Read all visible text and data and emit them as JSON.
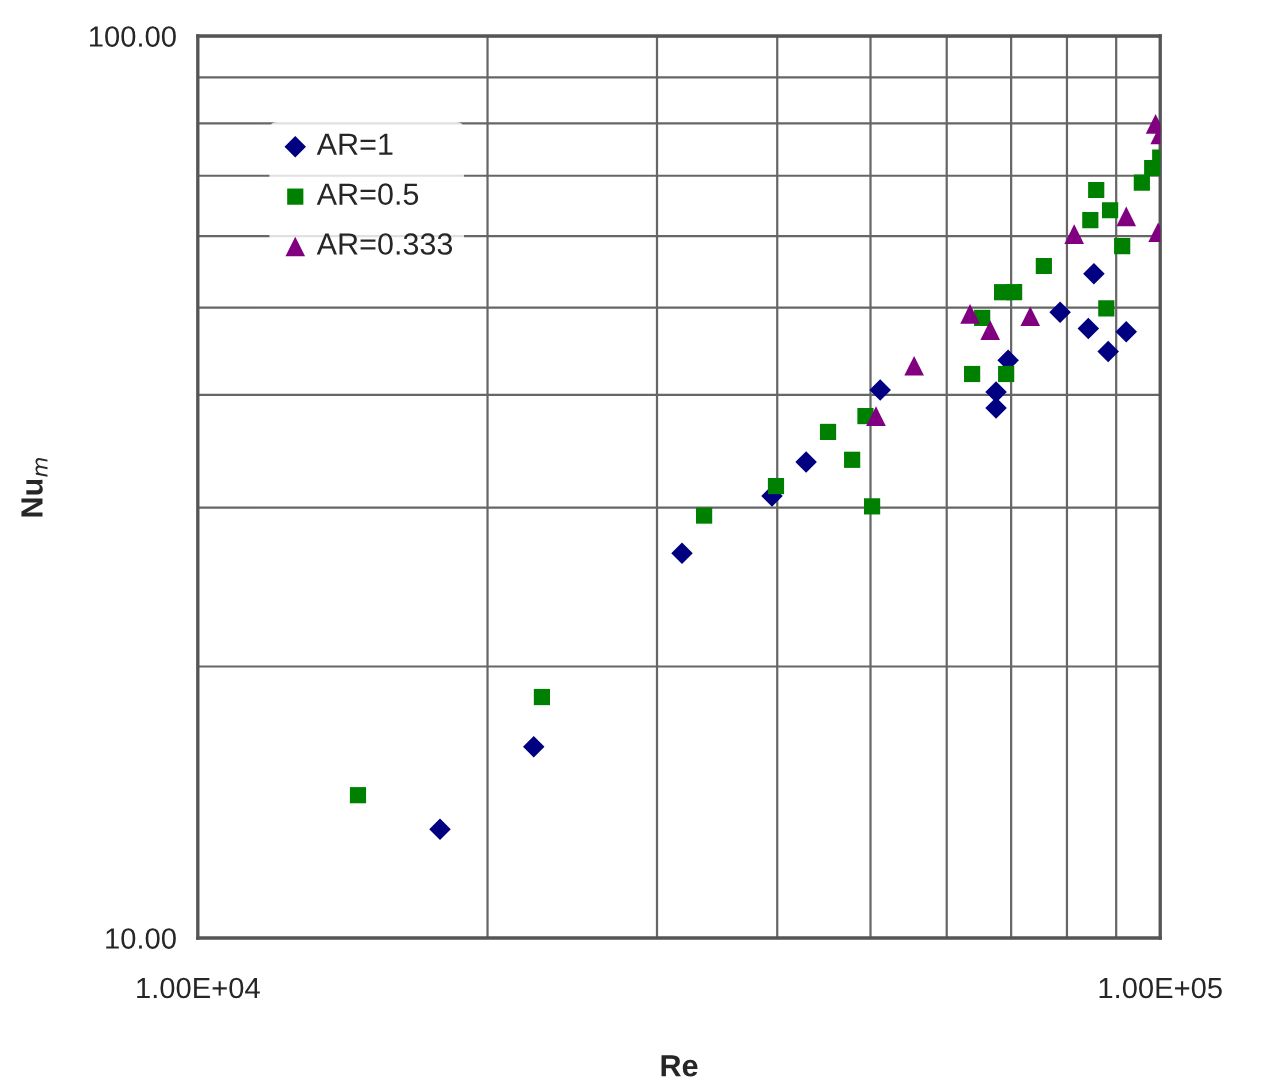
{
  "chart_data": {
    "type": "scatter",
    "xlabel": "Re",
    "ylabel": "Nu$_{m}$",
    "log": "xy",
    "grid": true,
    "legend": "top left",
    "xlim": [
      10000,
      100000
    ],
    "ylim": [
      10,
      100
    ],
    "xticks": [
      {
        "value": 10000,
        "label": "1.00E+04"
      },
      {
        "value": 20000,
        "label": null
      },
      {
        "value": 30000,
        "label": null
      },
      {
        "value": 40000,
        "label": null
      },
      {
        "value": 50000,
        "label": null
      },
      {
        "value": 60000,
        "label": null
      },
      {
        "value": 70000,
        "label": null
      },
      {
        "value": 80000,
        "label": null
      },
      {
        "value": 90000,
        "label": null
      },
      {
        "value": 100000,
        "label": "1.00E+05"
      }
    ],
    "yticks": [
      {
        "value": 10,
        "label": "10.00"
      },
      {
        "value": 20,
        "label": null
      },
      {
        "value": 30,
        "label": null
      },
      {
        "value": 40,
        "label": null
      },
      {
        "value": 50,
        "label": null
      },
      {
        "value": 60,
        "label": null
      },
      {
        "value": 70,
        "label": null
      },
      {
        "value": 80,
        "label": null
      },
      {
        "value": 90,
        "label": null
      },
      {
        "value": 100,
        "label": "100.00"
      }
    ],
    "series": [
      {
        "name": "AR=1",
        "color": "#000080",
        "marker": "diamond",
        "x": [
          17850,
          22340,
          31850,
          39500,
          42860,
          51170,
          67520,
          67520,
          69500,
          78700,
          84200,
          85330,
          88300,
          92200
        ],
        "values": [
          13.2,
          16.3,
          26.7,
          30.9,
          33.7,
          40.5,
          40.3,
          38.7,
          43.7,
          49.4,
          47.4,
          54.5,
          44.7,
          47.0
        ]
      },
      {
        "name": "AR=0.5",
        "color": "#008000",
        "marker": "square",
        "x": [
          14670,
          22780,
          33580,
          39880,
          45170,
          47850,
          50190,
          49400,
          63760,
          65310,
          69170,
          68500,
          70500,
          75700,
          84600,
          85800,
          88700,
          91300,
          87900,
          95700,
          98100,
          100000
        ],
        "values": [
          14.4,
          18.5,
          29.4,
          31.7,
          36.4,
          33.9,
          30.1,
          37.9,
          42.2,
          48.7,
          42.2,
          52.0,
          52.0,
          55.6,
          62.5,
          67.5,
          64.1,
          58.5,
          49.9,
          68.8,
          71.4,
          73.3
        ]
      },
      {
        "name": "AR=0.333",
        "color": "#800080",
        "marker": "triangle",
        "x": [
          55500,
          50660,
          63450,
          66580,
          73280,
          81400,
          92200,
          99500,
          98900,
          100000
        ],
        "values": [
          43.1,
          37.9,
          49.2,
          47.2,
          48.9,
          60.3,
          63.1,
          60.6,
          79.9,
          77.8
        ]
      }
    ]
  }
}
